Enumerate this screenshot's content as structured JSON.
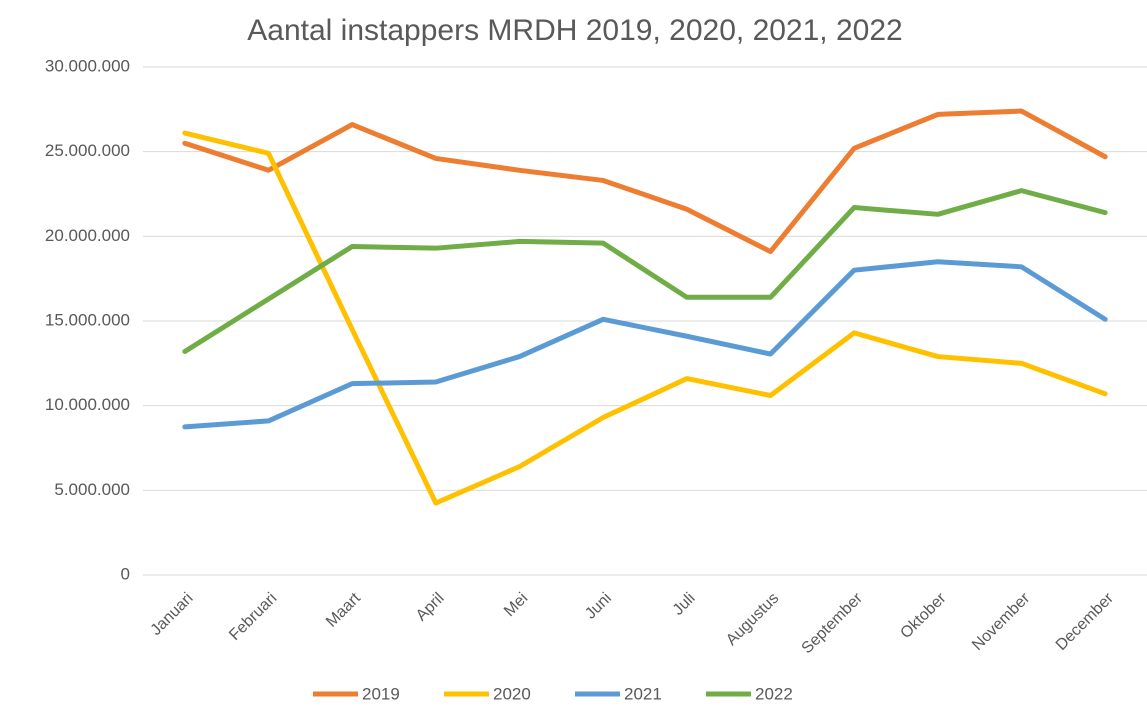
{
  "chart_data": {
    "type": "line",
    "title": "Aantal instappers MRDH 2019, 2020, 2021, 2022",
    "categories": [
      "Januari",
      "Februari",
      "Maart",
      "April",
      "Mei",
      "Juni",
      "Juli",
      "Augustus",
      "September",
      "Oktober",
      "November",
      "December"
    ],
    "series": [
      {
        "name": "2019",
        "color": "#ED7D31",
        "values": [
          25500000,
          23900000,
          26600000,
          24600000,
          23900000,
          23300000,
          21600000,
          19100000,
          25200000,
          27200000,
          27400000,
          24700000
        ]
      },
      {
        "name": "2020",
        "color": "#FFC000",
        "values": [
          26100000,
          24900000,
          14500000,
          4250000,
          6400000,
          9300000,
          11600000,
          10600000,
          14300000,
          12900000,
          12500000,
          10700000
        ]
      },
      {
        "name": "2021",
        "color": "#5B9BD5",
        "values": [
          8750000,
          9100000,
          11300000,
          11400000,
          12900000,
          15100000,
          14100000,
          13050000,
          18000000,
          18500000,
          18200000,
          15100000
        ]
      },
      {
        "name": "2022",
        "color": "#70AD47",
        "values": [
          13200000,
          16300000,
          19400000,
          19300000,
          19700000,
          19600000,
          16400000,
          16400000,
          21700000,
          21300000,
          22700000,
          21400000
        ]
      }
    ],
    "ylim": [
      0,
      30000000
    ],
    "yticks": [
      0,
      {
        "value": 5000000,
        "label": "5.000.000"
      },
      {
        "value": 10000000,
        "label": "10.000.000"
      },
      {
        "value": 15000000,
        "label": "15.000.000"
      },
      {
        "value": 20000000,
        "label": "20.000.000"
      },
      {
        "value": 25000000,
        "label": "25.000.000"
      },
      {
        "value": 30000000,
        "label": "30.000.000"
      }
    ],
    "grid": true,
    "legend": "bottom"
  }
}
